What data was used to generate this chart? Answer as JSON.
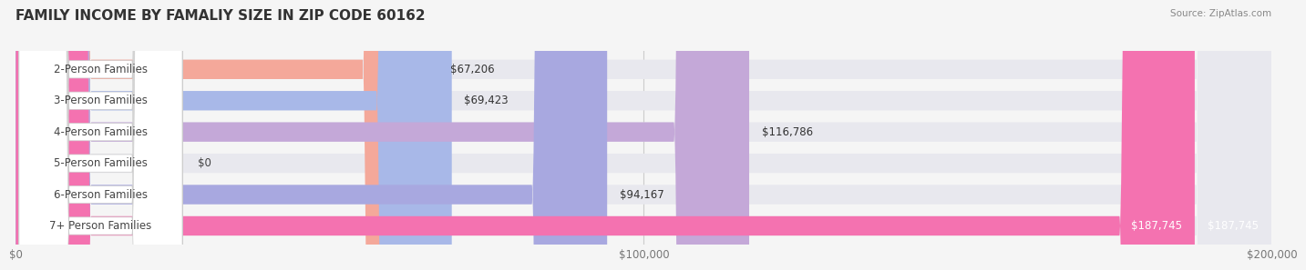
{
  "title": "FAMILY INCOME BY FAMALIY SIZE IN ZIP CODE 60162",
  "source": "Source: ZipAtlas.com",
  "categories": [
    "2-Person Families",
    "3-Person Families",
    "4-Person Families",
    "5-Person Families",
    "6-Person Families",
    "7+ Person Families"
  ],
  "values": [
    67206,
    69423,
    116786,
    0,
    94167,
    187745
  ],
  "bar_colors": [
    "#F4A89A",
    "#A8B8E8",
    "#C4A8D8",
    "#7ECECA",
    "#A8A8E0",
    "#F472B0"
  ],
  "label_colors": [
    "#333333",
    "#333333",
    "#333333",
    "#333333",
    "#333333",
    "#ffffff"
  ],
  "value_labels": [
    "$67,206",
    "$69,423",
    "$116,786",
    "$0",
    "$94,167",
    "$187,745"
  ],
  "xlim": [
    0,
    200000
  ],
  "xticks": [
    0,
    100000,
    200000
  ],
  "xtick_labels": [
    "$0",
    "$100,000",
    "$200,000"
  ],
  "background_color": "#f5f5f5",
  "bar_background": "#e8e8ee",
  "title_fontsize": 11,
  "bar_height": 0.62,
  "label_fontsize": 8.5,
  "value_fontsize": 8.5
}
